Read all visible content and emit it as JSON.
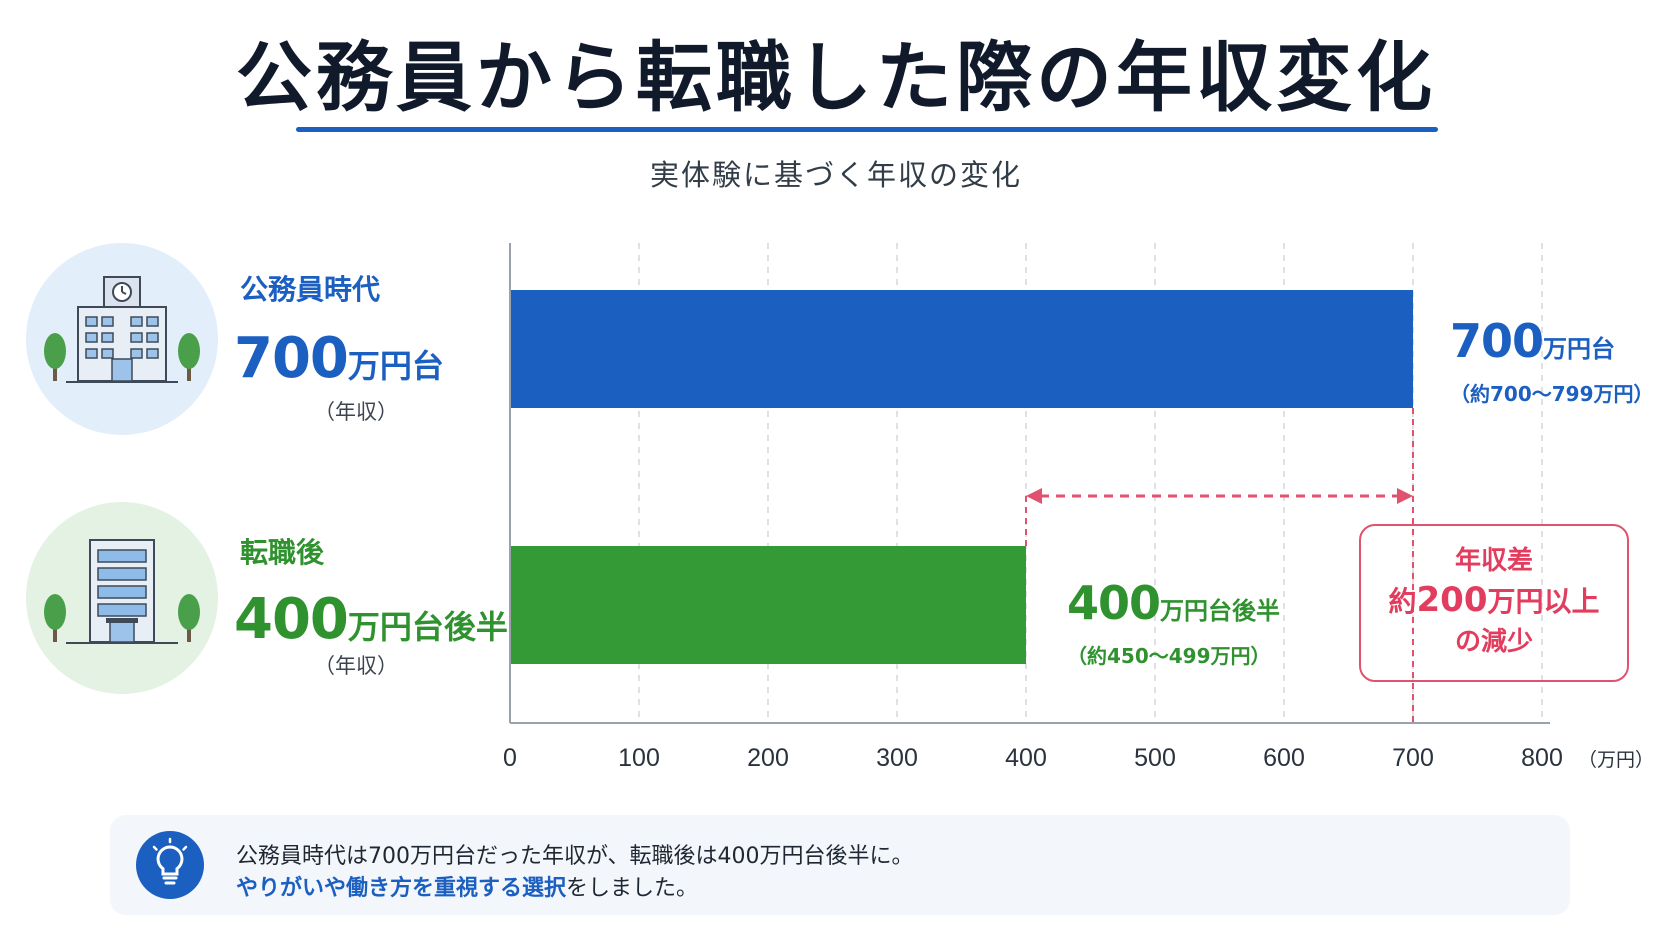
{
  "title": "公務員から転職した際の年収変化",
  "subtitle": "実体験に基づく年収の変化",
  "rows": [
    {
      "name": "公務員時代",
      "value_num": "700",
      "value_unit": "万円台",
      "note": "（年収）",
      "icon": "government-building-icon"
    },
    {
      "name": "転職後",
      "value_num": "400",
      "value_unit": "万円台後半",
      "note": "（年収）",
      "icon": "office-building-icon"
    }
  ],
  "bar_labels": [
    {
      "num": "700",
      "unit": "万円台",
      "range": "（約700〜799万円）"
    },
    {
      "num": "400",
      "unit": "万円台後半",
      "range": "（約450〜499万円）"
    }
  ],
  "difference": {
    "line1": "年収差",
    "prefix": "約",
    "num": "200",
    "suffix": "万円以上",
    "line3": "の減少"
  },
  "x_unit_label": "（万円）",
  "note": {
    "line1": "公務員時代は700万円台だった年収が、転職後は400万円台後半に。",
    "line2_highlight": "やりがいや働き方を重視する選択",
    "line2_rest": "をしました。",
    "icon": "lightbulb-icon"
  },
  "colors": {
    "blue": "#1b5fc1",
    "green": "#339a35",
    "red": "#e0526e"
  },
  "chart_data": {
    "type": "bar",
    "orientation": "horizontal",
    "categories": [
      "公務員時代",
      "転職後"
    ],
    "values": [
      700,
      400
    ],
    "colors": [
      "#1b5fc1",
      "#339a35"
    ],
    "xlim": [
      0,
      800
    ],
    "xticks": [
      0,
      100,
      200,
      300,
      400,
      500,
      600,
      700,
      800
    ],
    "x_unit": "（万円）",
    "grid": "vertical dashed",
    "annotation": {
      "from": 400,
      "to": 700,
      "label": "年収差 約200万円以上の減少"
    }
  }
}
